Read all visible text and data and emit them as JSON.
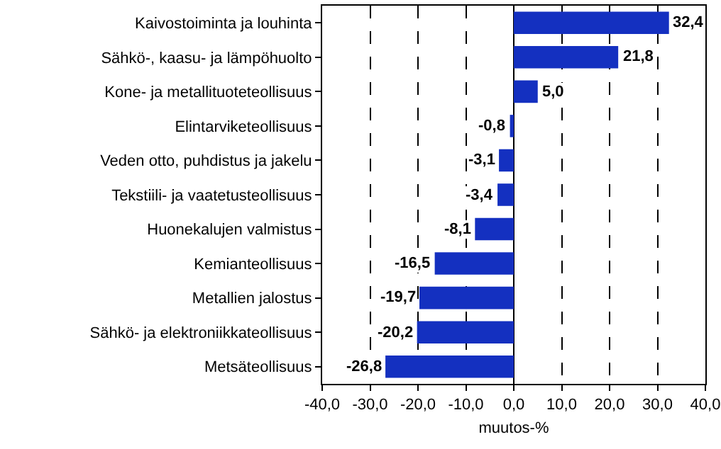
{
  "chart_data": {
    "type": "bar",
    "orientation": "horizontal",
    "xlabel": "muutos-%",
    "categories": [
      "Kaivostoiminta ja louhinta",
      "Sähkö-, kaasu- ja lämpöhuolto",
      "Kone- ja metallituoteteollisuus",
      "Elintarviketeollisuus",
      "Veden otto, puhdistus ja jakelu",
      "Tekstiili- ja vaatetusteollisuus",
      "Huonekalujen valmistus",
      "Kemianteollisuus",
      "Metallien jalostus",
      "Sähkö- ja elektroniikkateollisuus",
      "Metsäteollisuus"
    ],
    "values": [
      32.4,
      21.8,
      5.0,
      -0.8,
      -3.1,
      -3.4,
      -8.1,
      -16.5,
      -19.7,
      -20.2,
      -26.8
    ],
    "value_labels": [
      "32,4",
      "21,8",
      "5,0",
      "-0,8",
      "-3,1",
      "-3,4",
      "-8,1",
      "-16,5",
      "-19,7",
      "-20,2",
      "-26,8"
    ],
    "color": "#1430c0",
    "xlim": [
      -40,
      40
    ],
    "xticks": [
      {
        "value": -40,
        "label": "-40,0"
      },
      {
        "value": -30,
        "label": "-30,0"
      },
      {
        "value": -20,
        "label": "-20,0"
      },
      {
        "value": -10,
        "label": "-10,0"
      },
      {
        "value": 0,
        "label": "0,0"
      },
      {
        "value": 10,
        "label": "10,0"
      },
      {
        "value": 20,
        "label": "20,0"
      },
      {
        "value": 30,
        "label": "30,0"
      },
      {
        "value": 40,
        "label": "40,0"
      }
    ],
    "grid": "x",
    "line_style": "dashed",
    "legend": false
  }
}
